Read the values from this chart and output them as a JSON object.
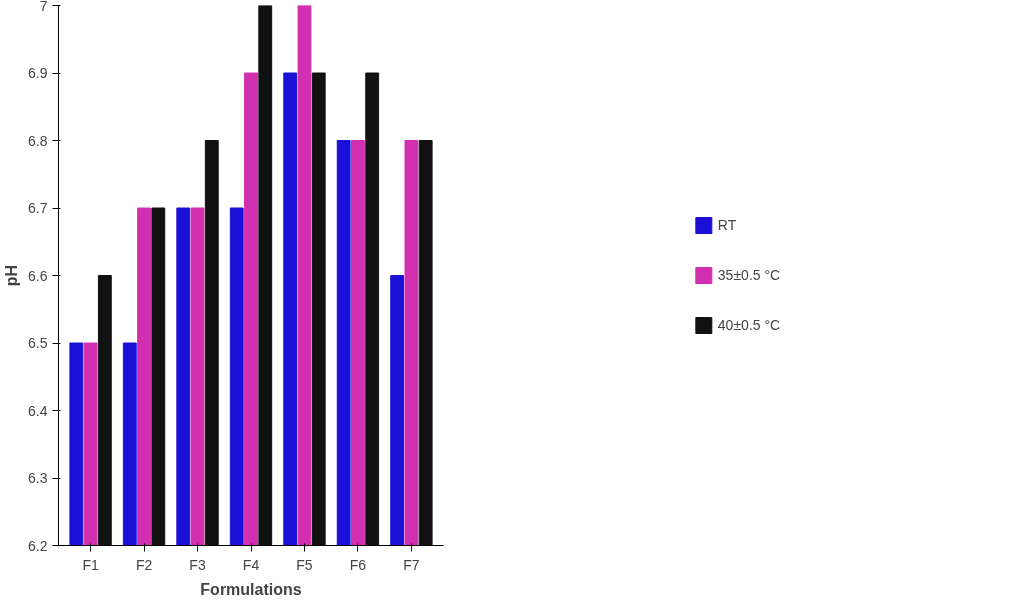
{
  "chart_data": {
    "type": "bar",
    "xlabel": "Formulations",
    "ylabel": "pH",
    "categories": [
      "F1",
      "F2",
      "F3",
      "F4",
      "F5",
      "F6",
      "F7"
    ],
    "series": [
      {
        "name": "RT",
        "color": "#1a10d8",
        "values": [
          6.5,
          6.5,
          6.7,
          6.7,
          6.9,
          6.8,
          6.6
        ]
      },
      {
        "name": "35±0.5 °C",
        "color": "#d12fb0",
        "values": [
          6.5,
          6.7,
          6.7,
          6.9,
          7.0,
          6.8,
          6.8
        ]
      },
      {
        "name": "40±0.5 °C",
        "color": "#111111",
        "values": [
          6.6,
          6.7,
          6.8,
          7.0,
          6.9,
          6.9,
          6.8
        ]
      }
    ],
    "ylim": [
      6.2,
      7
    ],
    "yticks": [
      6.2,
      6.3,
      6.4,
      6.5,
      6.6,
      6.7,
      6.8,
      6.9,
      7
    ],
    "grid": false,
    "legend": "right"
  }
}
